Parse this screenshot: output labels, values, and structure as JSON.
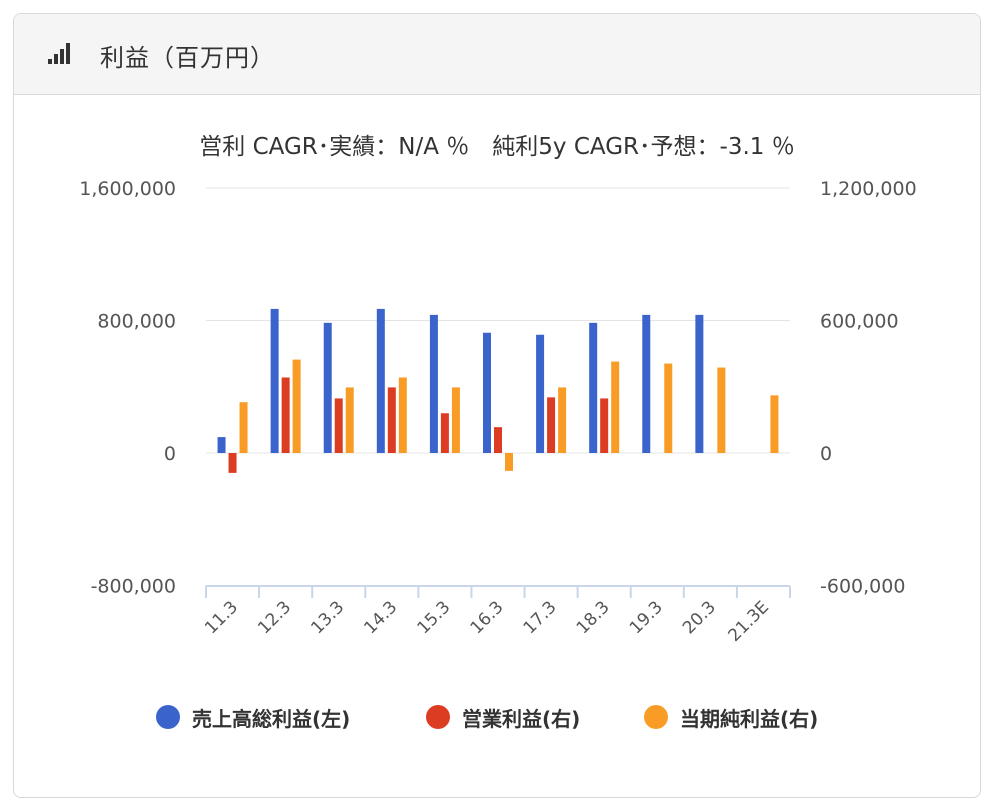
{
  "panel": {
    "title": "利益（百万円）",
    "icon": "signal-bars-icon"
  },
  "chart_data": {
    "type": "bar",
    "title": "営利 CAGR･実績：N/A ％　純利5y CAGR･予想：-3.1 ％",
    "categories": [
      "11.3",
      "12.3",
      "13.3",
      "14.3",
      "15.3",
      "16.3",
      "17.3",
      "18.3",
      "19.3",
      "20.3",
      "21.3E"
    ],
    "left_axis": {
      "ylim": [
        -800000,
        1600000
      ],
      "ticks": [
        1600000,
        800000,
        0,
        -800000
      ],
      "tick_labels": [
        "1,600,000",
        "800,000",
        "0",
        "-800,000"
      ]
    },
    "right_axis": {
      "ylim": [
        -600000,
        1200000
      ],
      "ticks": [
        1200000,
        600000,
        0,
        -600000
      ],
      "tick_labels": [
        "1,200,000",
        "600,000",
        "0",
        "-600,000"
      ]
    },
    "series": [
      {
        "name": "売上高総利益(左)",
        "axis": "left",
        "color": "#3A64CB",
        "values": [
          96000,
          870000,
          786000,
          870000,
          834000,
          726000,
          714000,
          786000,
          834000,
          834000,
          null
        ]
      },
      {
        "name": "営業利益(右)",
        "axis": "right",
        "color": "#DC3C22",
        "values": [
          -90000,
          342000,
          247000,
          297000,
          180000,
          117000,
          252000,
          247000,
          null,
          null,
          null
        ]
      },
      {
        "name": "当期純利益(右)",
        "axis": "right",
        "color": "#F99C26",
        "values": [
          230000,
          423000,
          297000,
          342000,
          297000,
          -81000,
          297000,
          414000,
          405000,
          387000,
          261000
        ]
      }
    ],
    "grid": true,
    "legend_position": "bottom"
  }
}
